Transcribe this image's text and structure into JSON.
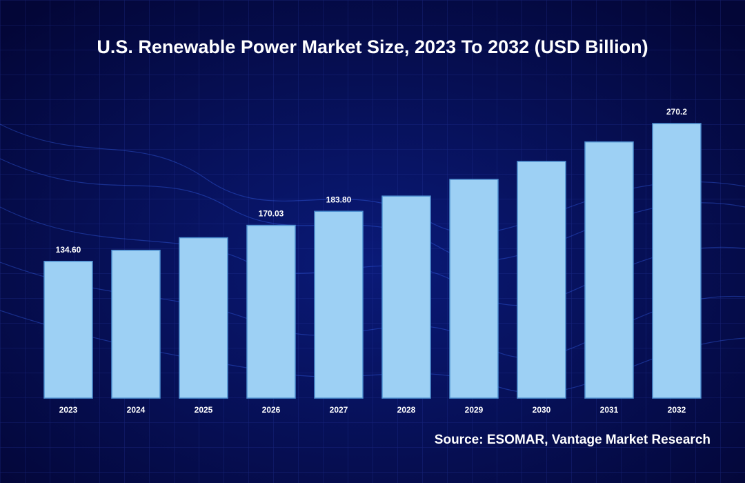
{
  "chart_data": {
    "type": "bar",
    "title": "U.S. Renewable Power Market Size, 2023 To 2032 (USD Billion)",
    "source": "Source: ESOMAR, Vantage Market Research",
    "categories": [
      "2023",
      "2024",
      "2025",
      "2026",
      "2027",
      "2028",
      "2029",
      "2030",
      "2031",
      "2032"
    ],
    "values": [
      134.6,
      145.5,
      157.8,
      170.03,
      183.8,
      198.8,
      215.2,
      232.9,
      252.1,
      270.2
    ],
    "value_labels": [
      "134.60",
      null,
      null,
      "170.03",
      "183.80",
      null,
      null,
      null,
      null,
      "270.2"
    ],
    "color": "#9dd0f4"
  }
}
